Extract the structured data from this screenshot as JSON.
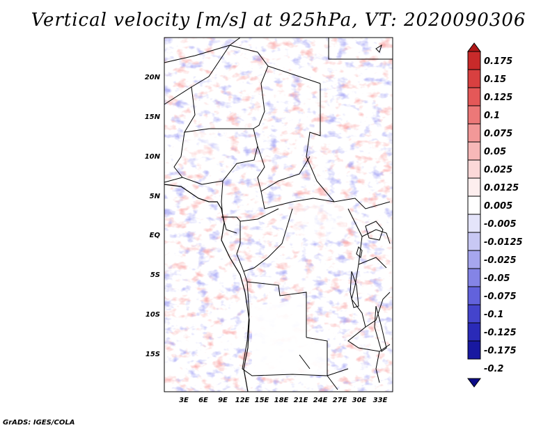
{
  "title": "Vertical velocity [m/s] at 925hPa, VT: 2020090306",
  "credit": "GrADS: IGES/COLA",
  "map": {
    "lat_labels": [
      "20N",
      "15N",
      "10N",
      "5N",
      "EQ",
      "5S",
      "10S",
      "15S"
    ],
    "lon_labels": [
      "3E",
      "6E",
      "9E",
      "12E",
      "15E",
      "18E",
      "21E",
      "24E",
      "27E",
      "30E",
      "33E"
    ]
  },
  "colorbar": {
    "levels": [
      "0.175",
      "0.15",
      "0.125",
      "0.1",
      "0.075",
      "0.05",
      "0.025",
      "0.0125",
      "0.005",
      "-0.005",
      "-0.0125",
      "-0.025",
      "-0.05",
      "-0.075",
      "-0.1",
      "-0.125",
      "-0.175",
      "-0.2"
    ],
    "colors": [
      "#b01818",
      "#c82a2a",
      "#d84040",
      "#e45858",
      "#ec7878",
      "#f29898",
      "#f7b8b8",
      "#fbd8d8",
      "#fdeeee",
      "#ffffff",
      "#e4e4fa",
      "#c8c8f4",
      "#a6a6ee",
      "#8484e6",
      "#6262dc",
      "#4444cc",
      "#2a2ab8",
      "#1818a0",
      "#0c0c88"
    ]
  }
}
